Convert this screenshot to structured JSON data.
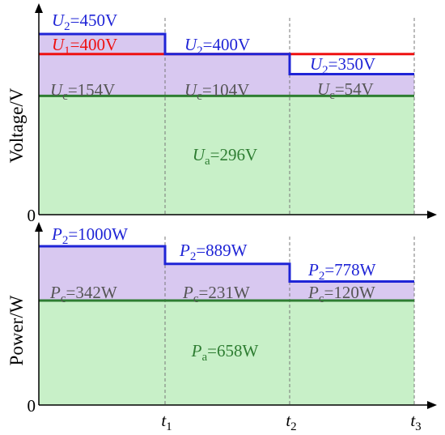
{
  "colors": {
    "green_fill": "#c8f0c8",
    "purple_fill": "#d8c8f0",
    "green_line": "#2e7d32",
    "blue_line": "#1f24d6",
    "red_line": "#ee1111",
    "grid": "#777777",
    "axis": "#000000"
  },
  "chart_data": [
    {
      "type": "area",
      "ylabel": "Voltage/V",
      "origin_label": "0",
      "x_ticks": [
        {
          "sym": "t",
          "sub": "1"
        },
        {
          "sym": "t",
          "sub": "2"
        },
        {
          "sym": "t",
          "sub": "3"
        }
      ],
      "lines": {
        "U2": [
          450,
          400,
          350
        ],
        "U1": 400,
        "Ua": 296
      },
      "labels": [
        {
          "seg": 0,
          "sym": "U",
          "sub": "2",
          "rest": "=450V",
          "color": "#1f24d6"
        },
        {
          "seg": 0,
          "sym": "U",
          "sub": "1",
          "rest": "=400V",
          "color": "#ee1111"
        },
        {
          "seg": 0,
          "sym": "U",
          "sub": "c",
          "rest": "=154V",
          "color": "#555555"
        },
        {
          "seg": 1,
          "sym": "U",
          "sub": "2",
          "rest": "=400V",
          "color": "#1f24d6"
        },
        {
          "seg": 1,
          "sym": "U",
          "sub": "c",
          "rest": "=104V",
          "color": "#555555"
        },
        {
          "seg": 2,
          "sym": "U",
          "sub": "2",
          "rest": "=350V",
          "color": "#1f24d6"
        },
        {
          "seg": 2,
          "sym": "U",
          "sub": "c",
          "rest": "=54V",
          "color": "#555555"
        },
        {
          "seg": 1,
          "sym": "U",
          "sub": "a",
          "rest": "=296V",
          "color": "#2e7d32"
        }
      ]
    },
    {
      "type": "area",
      "ylabel": "Power/W",
      "origin_label": "0",
      "x_ticks": [
        {
          "sym": "t",
          "sub": "1"
        },
        {
          "sym": "t",
          "sub": "2"
        },
        {
          "sym": "t",
          "sub": "3"
        }
      ],
      "lines": {
        "P2": [
          1000,
          889,
          778
        ],
        "Pa": 658
      },
      "labels": [
        {
          "seg": 0,
          "sym": "P",
          "sub": "2",
          "rest": "=1000W",
          "color": "#1f24d6"
        },
        {
          "seg": 0,
          "sym": "P",
          "sub": "c",
          "rest": "=342W",
          "color": "#555555"
        },
        {
          "seg": 1,
          "sym": "P",
          "sub": "2",
          "rest": "=889W",
          "color": "#1f24d6"
        },
        {
          "seg": 1,
          "sym": "P",
          "sub": "c",
          "rest": "=231W",
          "color": "#555555"
        },
        {
          "seg": 2,
          "sym": "P",
          "sub": "2",
          "rest": "=778W",
          "color": "#1f24d6"
        },
        {
          "seg": 2,
          "sym": "P",
          "sub": "c",
          "rest": "=120W",
          "color": "#555555"
        },
        {
          "seg": 1,
          "sym": "P",
          "sub": "a",
          "rest": "=658W",
          "color": "#2e7d32"
        }
      ]
    }
  ]
}
